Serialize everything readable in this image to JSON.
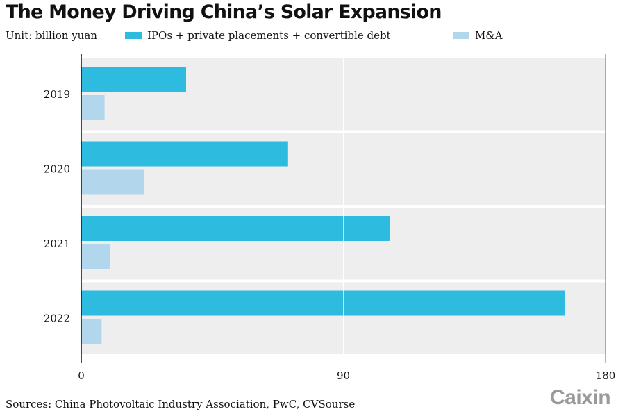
{
  "header": {
    "title": "The Money Driving China’s Solar Expansion",
    "unit": "Unit: billion yuan"
  },
  "footer": {
    "sources": "Sources: China Photovoltaic Industry Association, PwC, CVSourse",
    "logo": "Caixin"
  },
  "colors": {
    "ipo": "#2ebbe0",
    "ma": "#b2d6ec",
    "panel": "#efeeef",
    "axis": "#111111",
    "gridline": "#ffffff"
  },
  "chart_data": {
    "type": "bar",
    "orientation": "horizontal",
    "title": "The Money Driving China’s Solar Expansion",
    "subtitle": "Unit: billion yuan",
    "xlabel": "",
    "ylabel": "",
    "categories": [
      "2019",
      "2020",
      "2021",
      "2022"
    ],
    "series": [
      {
        "name": "IPOs + private placements + convertible debt",
        "values": [
          36,
          71,
          106,
          166
        ]
      },
      {
        "name": "M&A",
        "values": [
          8,
          21.5,
          10,
          7
        ]
      }
    ],
    "xlim": [
      0,
      180
    ],
    "xticks": [
      "0",
      "90",
      "180"
    ],
    "xtick_values": [
      0,
      90,
      180
    ],
    "grid": true,
    "legend_position": "top",
    "source": "Sources: China Photovoltaic Industry Association, PwC, CVSourse"
  }
}
